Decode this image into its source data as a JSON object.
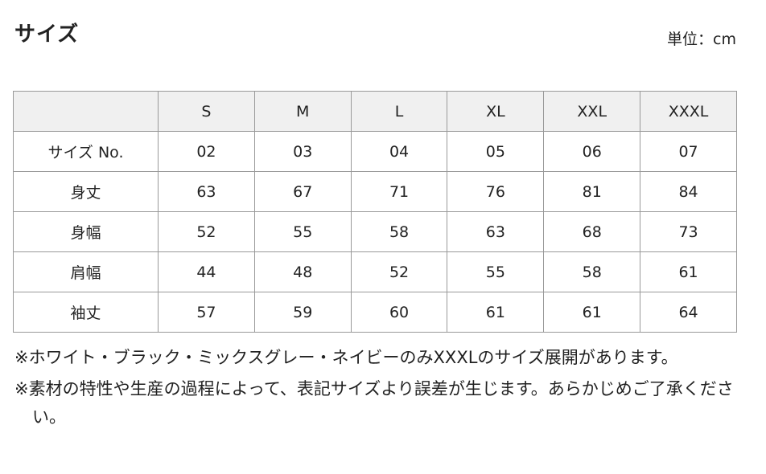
{
  "title": "サイズ",
  "unit": "単位：cm",
  "table": {
    "headers": [
      "",
      "S",
      "M",
      "L",
      "XL",
      "XXL",
      "XXXL"
    ],
    "rows": [
      {
        "label": "サイズ No.",
        "values": [
          "02",
          "03",
          "04",
          "05",
          "06",
          "07"
        ]
      },
      {
        "label": "身丈",
        "values": [
          "63",
          "67",
          "71",
          "76",
          "81",
          "84"
        ]
      },
      {
        "label": "身幅",
        "values": [
          "52",
          "55",
          "58",
          "63",
          "68",
          "73"
        ]
      },
      {
        "label": "肩幅",
        "values": [
          "44",
          "48",
          "52",
          "55",
          "58",
          "61"
        ]
      },
      {
        "label": "袖丈",
        "values": [
          "57",
          "59",
          "60",
          "61",
          "61",
          "64"
        ]
      }
    ]
  },
  "notes": [
    "※ホワイト・ブラック・ミックスグレー・ネイビーのみXXXLのサイズ展開があります。",
    "※素材の特性や生産の過程によって、表記サイズより誤差が生じます。あらかじめご了承ください。"
  ],
  "colors": {
    "header_bg": "#f0f0f0",
    "border": "#999999"
  }
}
